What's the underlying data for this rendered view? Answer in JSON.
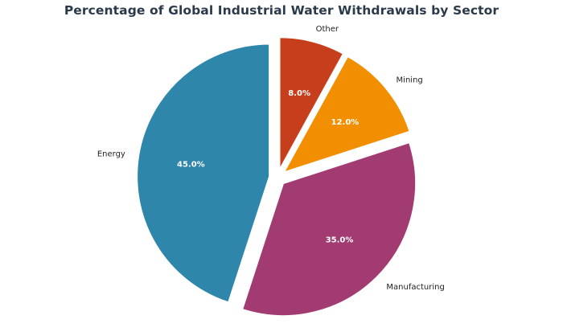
{
  "chart_data": {
    "type": "pie",
    "title": "Percentage of Global Industrial Water Withdrawals by Sector",
    "categories": [
      "Energy",
      "Manufacturing",
      "Mining",
      "Other"
    ],
    "values": [
      45.0,
      35.0,
      12.0,
      8.0
    ],
    "value_labels": [
      "45.0%",
      "35.0%",
      "12.0%",
      "8.0%"
    ],
    "colors": [
      "#2e86ab",
      "#a23b72",
      "#f18f01",
      "#c73e1d"
    ],
    "start_angle_deg": 90,
    "direction": "counterclockwise",
    "exploded": true,
    "legend": "none"
  }
}
